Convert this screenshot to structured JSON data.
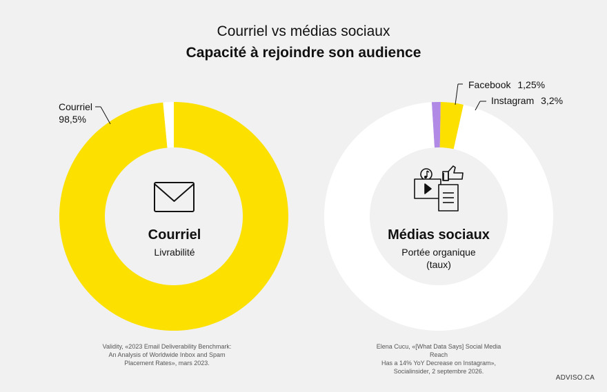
{
  "header": {
    "title": "Courriel vs médias sociaux",
    "subtitle": "Capacité à rejoindre son audience"
  },
  "colors": {
    "background": "#f1f1f1",
    "donut_fill": "#fbe000",
    "donut_rest": "#ffffff",
    "facebook": "#b18ae6",
    "inner_circle": "#f1f1f1"
  },
  "chart_data": [
    {
      "type": "pie",
      "title": "Courriel",
      "subtitle": "Livrabilité",
      "icon": "envelope-icon",
      "slices": [
        {
          "label": "Courriel",
          "value": 98.5,
          "value_label": "98,5%",
          "color": "#fbe000"
        },
        {
          "label": "",
          "value": 1.5,
          "color": "#ffffff"
        }
      ]
    },
    {
      "type": "pie",
      "title": "Médias sociaux",
      "subtitle_line1": "Portée organique",
      "subtitle_line2": "(taux)",
      "icon": "social-media-icon",
      "slices": [
        {
          "label": "Facebook",
          "value": 1.25,
          "value_label": "1,25%",
          "color": "#b18ae6"
        },
        {
          "label": "Instagram",
          "value": 3.2,
          "value_label": "3,2%",
          "color": "#fbe000"
        },
        {
          "label": "",
          "value": 95.55,
          "color": "#ffffff"
        }
      ]
    }
  ],
  "sources": {
    "left": [
      "Validity, «2023 Email Deliverability Benchmark:",
      "An Analysis of Worldwide Inbox and Spam",
      "Placement Rates», mars 2023."
    ],
    "right": [
      "Elena Cucu, «[What Data Says] Social Media Reach",
      "Has a 14% YoY Decrease on Instagram»,",
      "Socialinsider, 2 septembre 2026."
    ]
  },
  "brand": "ADVISO.CA"
}
